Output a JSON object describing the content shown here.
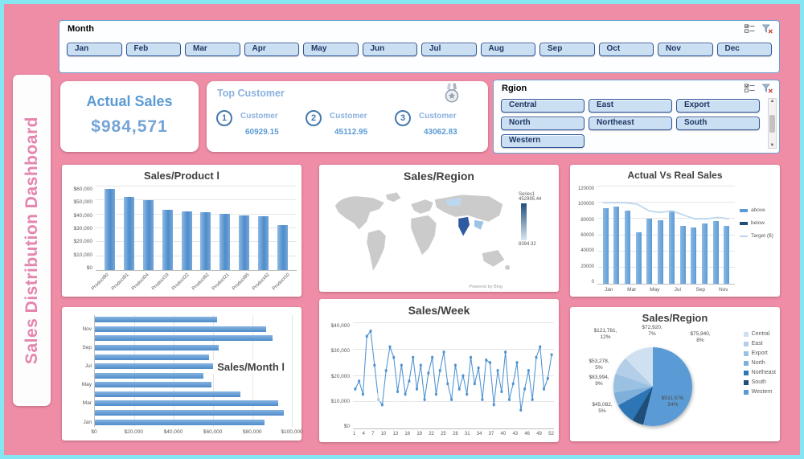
{
  "frame": {
    "bg": "#f08da6",
    "border": "#85e6f2",
    "accent": "#5b9bd5"
  },
  "sidebar": {
    "title": "Sales Distribution Dashboard"
  },
  "month_slicer": {
    "title": "Month",
    "items": [
      "Jan",
      "Feb",
      "Mar",
      "Apr",
      "May",
      "Jun",
      "Jul",
      "Aug",
      "Sep",
      "Oct",
      "Nov",
      "Dec"
    ]
  },
  "kpi": {
    "label": "Actual Sales",
    "value": "$984,571"
  },
  "top_customers": {
    "title": "Top Customer",
    "items": [
      {
        "rank": "1",
        "label": "Customer",
        "value": "60929.15"
      },
      {
        "rank": "2",
        "label": "Customer",
        "value": "45112.95"
      },
      {
        "rank": "3",
        "label": "Customer",
        "value": "43062.83"
      }
    ]
  },
  "region_slicer": {
    "title": "Rgion",
    "items": [
      "Central",
      "East",
      "Export",
      "North",
      "Northeast",
      "South",
      "Western"
    ]
  },
  "watermark": "مستقل",
  "chart_data": [
    {
      "id": "product",
      "type": "bar",
      "title": "Sales/Product l",
      "categories": [
        "Product80",
        "Product81",
        "Product04",
        "Product19",
        "Product22",
        "Product62",
        "Product21",
        "Product85",
        "Product42",
        "Product10"
      ],
      "values": [
        58000,
        52500,
        50000,
        43000,
        42000,
        41500,
        40500,
        39500,
        38500,
        32500
      ],
      "ylim": [
        0,
        60000
      ],
      "yticks": [
        "$60,000",
        "$50,000",
        "$40,000",
        "$30,000",
        "$20,000",
        "$10,000",
        "$0"
      ],
      "grid": true,
      "legend": "none"
    },
    {
      "id": "map",
      "type": "heatmap",
      "title": "Sales/Region",
      "legend_title": "Series1",
      "legend_max": "452995.44",
      "legend_min": "8394.32",
      "attribution": "Powered by Bing"
    },
    {
      "id": "combo",
      "type": "bar",
      "title": "Actual Vs Real Sales",
      "categories": [
        "Jan",
        "Feb",
        "Mar",
        "Apr",
        "May",
        "Jun",
        "Jul",
        "Aug",
        "Sep",
        "Oct",
        "Nov",
        "Dec"
      ],
      "xticks": [
        "Jan",
        "Mar",
        "May",
        "Jul",
        "Sep",
        "Nov"
      ],
      "yticks": [
        "120000",
        "100000",
        "80000",
        "60000",
        "40000",
        "20000",
        "0"
      ],
      "ylim": [
        0,
        120000
      ],
      "legend_position": "right",
      "series": [
        {
          "name": "above",
          "kind": "bar",
          "color": "#5b9bd5",
          "values": [
            93000,
            95000,
            90000,
            63000,
            80000,
            78000,
            90000,
            71000,
            69000,
            74000,
            77000,
            71000
          ]
        },
        {
          "name": "below",
          "kind": "bar",
          "color": "#1f4e79",
          "values": []
        },
        {
          "name": "Target ($)",
          "kind": "line",
          "color": "#bdd7ee",
          "values": [
            100000,
            100000,
            100000,
            98000,
            90000,
            88000,
            90000,
            85000,
            80000,
            80000,
            82000,
            80000
          ]
        }
      ]
    },
    {
      "id": "month",
      "type": "bar",
      "title": "Sales/Month l",
      "orientation": "horizontal",
      "categories": [
        "Jan",
        "Feb",
        "Mar",
        "Apr",
        "May",
        "Jun",
        "Jul",
        "Aug",
        "Sep",
        "Oct",
        "Nov",
        "Dec"
      ],
      "values": [
        86000,
        96000,
        93000,
        74000,
        59000,
        55000,
        61000,
        58000,
        63000,
        90000,
        87000,
        62000
      ],
      "shown_labels": [
        "Jan",
        "Mar",
        "May",
        "Jul",
        "Sep",
        "Nov"
      ],
      "xlim": [
        0,
        100000
      ],
      "xticks": [
        "$0",
        "$20,000",
        "$40,000",
        "$60,000",
        "$80,000",
        "$100,000"
      ],
      "grid": true
    },
    {
      "id": "week",
      "type": "line",
      "title": "Sales/Week",
      "xticks": [
        "1",
        "4",
        "7",
        "10",
        "13",
        "16",
        "19",
        "22",
        "25",
        "28",
        "31",
        "34",
        "37",
        "40",
        "43",
        "46",
        "49",
        "52"
      ],
      "yticks": [
        "$40,000",
        "$30,000",
        "$20,000",
        "$10,000",
        "$0"
      ],
      "ylim": [
        0,
        40000
      ],
      "values": [
        15000,
        18000,
        13000,
        35000,
        37000,
        24000,
        11000,
        9000,
        22000,
        31000,
        27000,
        14000,
        24000,
        13000,
        18000,
        27000,
        15000,
        24000,
        11000,
        21000,
        27000,
        13000,
        22000,
        29000,
        17000,
        11000,
        24000,
        15000,
        20000,
        13000,
        27000,
        17000,
        23000,
        11000,
        26000,
        25000,
        9000,
        22000,
        14000,
        29000,
        11000,
        17000,
        25000,
        7000,
        15000,
        22000,
        11000,
        27000,
        31000,
        15000,
        19000,
        28000
      ],
      "line_color": "#4f93d2",
      "markers": true
    },
    {
      "id": "pie",
      "type": "pie",
      "title": "Sales/Region",
      "slices": [
        {
          "name": "Central",
          "value": 121781,
          "label": "$121,781,",
          "pct": "12%",
          "color": "#cfe0f1"
        },
        {
          "name": "East",
          "value": 72920,
          "label": "$72,920,",
          "pct": "7%",
          "color": "#b4cde9"
        },
        {
          "name": "Export",
          "value": 75940,
          "label": "$75,940,",
          "pct": "8%",
          "color": "#9ac0e2"
        },
        {
          "name": "North",
          "value": 53278,
          "label": "$53,278,",
          "pct": "5%",
          "color": "#7fb0da"
        },
        {
          "name": "Northeast",
          "value": 83994,
          "label": "$83,994,",
          "pct": "9%",
          "color": "#2e75b6"
        },
        {
          "name": "South",
          "value": 45082,
          "label": "$45,082,",
          "pct": "5%",
          "color": "#1f4e79"
        },
        {
          "name": "Western",
          "value": 531576,
          "label": "$531,576,",
          "pct": "54%",
          "color": "#5b9bd5"
        }
      ],
      "draw_order": [
        "Western",
        "South",
        "Northeast",
        "North",
        "Export",
        "East",
        "Central"
      ],
      "legend_position": "right"
    }
  ]
}
